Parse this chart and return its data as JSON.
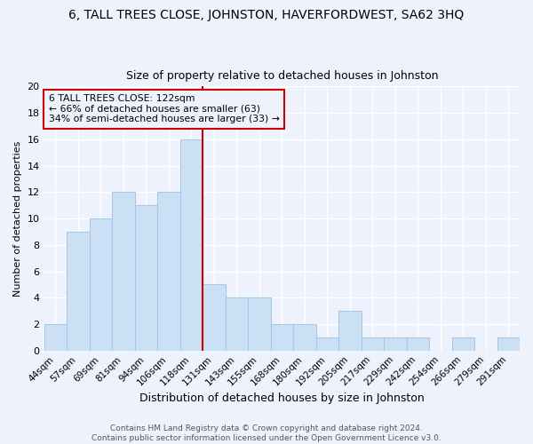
{
  "title": "6, TALL TREES CLOSE, JOHNSTON, HAVERFORDWEST, SA62 3HQ",
  "subtitle": "Size of property relative to detached houses in Johnston",
  "xlabel": "Distribution of detached houses by size in Johnston",
  "ylabel": "Number of detached properties",
  "categories": [
    "44sqm",
    "57sqm",
    "69sqm",
    "81sqm",
    "94sqm",
    "106sqm",
    "118sqm",
    "131sqm",
    "143sqm",
    "155sqm",
    "168sqm",
    "180sqm",
    "192sqm",
    "205sqm",
    "217sqm",
    "229sqm",
    "242sqm",
    "254sqm",
    "266sqm",
    "279sqm",
    "291sqm"
  ],
  "values": [
    2,
    9,
    10,
    12,
    11,
    12,
    16,
    5,
    4,
    4,
    2,
    2,
    1,
    3,
    1,
    1,
    1,
    0,
    1,
    0,
    1
  ],
  "bar_color": "#cce0f5",
  "bar_edge_color": "#a8c8e8",
  "redline_label": "6 TALL TREES CLOSE: 122sqm",
  "annotation_line1": "← 66% of detached houses are smaller (63)",
  "annotation_line2": "34% of semi-detached houses are larger (33) →",
  "vline_color": "#cc0000",
  "annotation_box_edge_color": "#cc0000",
  "footer": "Contains HM Land Registry data © Crown copyright and database right 2024.\nContains public sector information licensed under the Open Government Licence v3.0.",
  "ylim": [
    0,
    20
  ],
  "yticks": [
    0,
    2,
    4,
    6,
    8,
    10,
    12,
    14,
    16,
    18,
    20
  ],
  "bg_color": "#eef2fc",
  "grid_color": "#ffffff",
  "title_fontsize": 10,
  "subtitle_fontsize": 9,
  "footer_fontsize": 6.5,
  "ylabel_fontsize": 8,
  "xlabel_fontsize": 9
}
